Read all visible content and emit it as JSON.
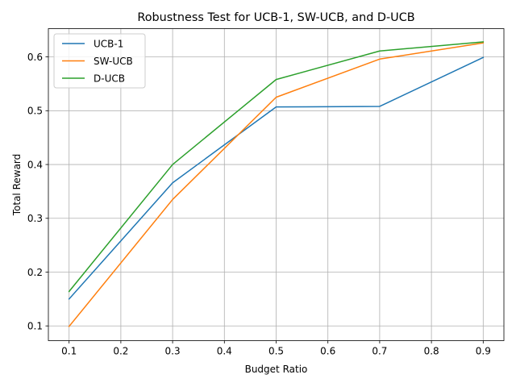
{
  "chart_data": {
    "type": "line",
    "title": "Robustness Test for UCB-1, SW-UCB, and D-UCB",
    "xlabel": "Budget Ratio",
    "ylabel": "Total Reward",
    "xlim": [
      0.06,
      0.94
    ],
    "ylim": [
      0.0726,
      0.6526
    ],
    "xticks": [
      "0.1",
      "0.2",
      "0.3",
      "0.4",
      "0.5",
      "0.6",
      "0.7",
      "0.8",
      "0.9"
    ],
    "yticks": [
      "0.1",
      "0.2",
      "0.3",
      "0.4",
      "0.5",
      "0.6"
    ],
    "grid": true,
    "legend_position": "upper-left",
    "x": [
      0.1,
      0.3,
      0.5,
      0.7,
      0.9
    ],
    "series": [
      {
        "name": "UCB-1",
        "color": "#1f77b4",
        "values": [
          0.15,
          0.366,
          0.507,
          0.508,
          0.599
        ]
      },
      {
        "name": "SW-UCB",
        "color": "#ff7f0e",
        "values": [
          0.099,
          0.335,
          0.525,
          0.596,
          0.626
        ]
      },
      {
        "name": "D-UCB",
        "color": "#2ca02c",
        "values": [
          0.164,
          0.4,
          0.558,
          0.611,
          0.628
        ]
      }
    ]
  }
}
